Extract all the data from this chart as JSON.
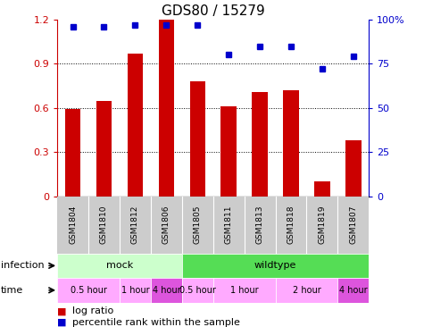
{
  "title": "GDS80 / 15279",
  "samples": [
    "GSM1804",
    "GSM1810",
    "GSM1812",
    "GSM1806",
    "GSM1805",
    "GSM1811",
    "GSM1813",
    "GSM1818",
    "GSM1819",
    "GSM1807"
  ],
  "log_ratio": [
    0.595,
    0.645,
    0.97,
    1.2,
    0.78,
    0.61,
    0.71,
    0.72,
    0.1,
    0.38
  ],
  "percentile_pct": [
    96,
    96,
    97,
    97,
    97,
    80,
    85,
    85,
    72,
    79
  ],
  "bar_color": "#cc0000",
  "dot_color": "#0000cc",
  "ylim_left": [
    0,
    1.2
  ],
  "ylim_right": [
    0,
    100
  ],
  "yticks_left": [
    0,
    0.3,
    0.6,
    0.9,
    1.2
  ],
  "yticks_left_labels": [
    "0",
    "0.3",
    "0.6",
    "0.9",
    "1.2"
  ],
  "yticks_right": [
    0,
    25,
    50,
    75,
    100
  ],
  "yticks_right_labels": [
    "0",
    "25",
    "50",
    "75",
    "100%"
  ],
  "infection_groups": [
    {
      "label": "mock",
      "start": 0,
      "end": 4,
      "color": "#ccffcc"
    },
    {
      "label": "wildtype",
      "start": 4,
      "end": 10,
      "color": "#55dd55"
    }
  ],
  "time_groups": [
    {
      "label": "0.5 hour",
      "start": 0,
      "end": 2,
      "color": "#ffaaff"
    },
    {
      "label": "1 hour",
      "start": 2,
      "end": 3,
      "color": "#ffaaff"
    },
    {
      "label": "4 hour",
      "start": 3,
      "end": 4,
      "color": "#dd55dd"
    },
    {
      "label": "0.5 hour",
      "start": 4,
      "end": 5,
      "color": "#ffaaff"
    },
    {
      "label": "1 hour",
      "start": 5,
      "end": 7,
      "color": "#ffaaff"
    },
    {
      "label": "2 hour",
      "start": 7,
      "end": 9,
      "color": "#ffaaff"
    },
    {
      "label": "4 hour",
      "start": 9,
      "end": 10,
      "color": "#dd55dd"
    }
  ],
  "sample_bg_color": "#cccccc",
  "sample_divider_color": "#ffffff",
  "grid_color": "#000000",
  "grid_style": "dotted",
  "grid_ticks": [
    0.3,
    0.6,
    0.9
  ],
  "bar_width": 0.5,
  "dot_size": 5,
  "title_fontsize": 11,
  "tick_fontsize": 8,
  "sample_fontsize": 6.5,
  "label_fontsize": 8,
  "legend_fontsize": 8,
  "background_color": "#ffffff"
}
